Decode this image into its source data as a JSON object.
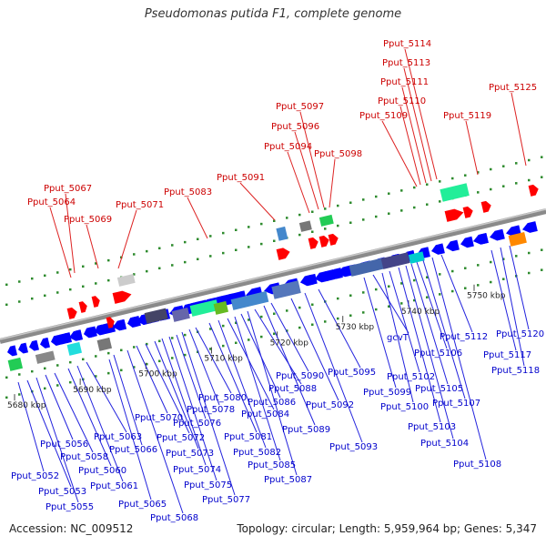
{
  "title": "Pseudomonas putida F1, complete genome",
  "footer": {
    "accession": "Accession: NC_009512",
    "summary": "Topology: circular; Length: 5,959,964 bp; Genes: 5,347"
  },
  "colors": {
    "label_red": "#cc0000",
    "label_blue": "#0000cc",
    "forward_gene": "#ff0000",
    "reverse_gene": "#0000ff",
    "backbone": "#888888"
  },
  "scale_labels": [
    {
      "text": "5680 kbp",
      "kbp": 5680
    },
    {
      "text": "5690 kbp",
      "kbp": 5690
    },
    {
      "text": "5700 kbp",
      "kbp": 5700
    },
    {
      "text": "5710 kbp",
      "kbp": 5710
    },
    {
      "text": "5720 kbp",
      "kbp": 5720
    },
    {
      "text": "5730 kbp",
      "kbp": 5730
    },
    {
      "text": "5740 kbp",
      "kbp": 5740
    },
    {
      "text": "5750 kbp",
      "kbp": 5750
    }
  ],
  "top_labels": [
    {
      "text": "Pput_5067"
    },
    {
      "text": "Pput_5064"
    },
    {
      "text": "Pput_5069"
    },
    {
      "text": "Pput_5071"
    },
    {
      "text": "Pput_5083"
    },
    {
      "text": "Pput_5091"
    },
    {
      "text": "Pput_5094"
    },
    {
      "text": "Pput_5096"
    },
    {
      "text": "Pput_5097"
    },
    {
      "text": "Pput_5098"
    },
    {
      "text": "Pput_5109"
    },
    {
      "text": "Pput_5110"
    },
    {
      "text": "Pput_5111"
    },
    {
      "text": "Pput_5113"
    },
    {
      "text": "Pput_5114"
    },
    {
      "text": "Pput_5119"
    },
    {
      "text": "Pput_5125"
    }
  ],
  "bottom_labels": [
    {
      "text": "Pput_5052"
    },
    {
      "text": "Pput_5053"
    },
    {
      "text": "Pput_5055"
    },
    {
      "text": "Pput_5056"
    },
    {
      "text": "Pput_5058"
    },
    {
      "text": "Pput_5060"
    },
    {
      "text": "Pput_5061"
    },
    {
      "text": "Pput_5063"
    },
    {
      "text": "Pput_5065"
    },
    {
      "text": "Pput_5066"
    },
    {
      "text": "Pput_5068"
    },
    {
      "text": "Pput_5070"
    },
    {
      "text": "Pput_5072"
    },
    {
      "text": "Pput_5073"
    },
    {
      "text": "Pput_5074"
    },
    {
      "text": "Pput_5075"
    },
    {
      "text": "Pput_5076"
    },
    {
      "text": "Pput_5077"
    },
    {
      "text": "Pput_5078"
    },
    {
      "text": "Pput_5080"
    },
    {
      "text": "Pput_5081"
    },
    {
      "text": "Pput_5082"
    },
    {
      "text": "Pput_5084"
    },
    {
      "text": "Pput_5085"
    },
    {
      "text": "Pput_5086"
    },
    {
      "text": "Pput_5087"
    },
    {
      "text": "Pput_5088"
    },
    {
      "text": "Pput_5089"
    },
    {
      "text": "Pput_5090"
    },
    {
      "text": "Pput_5092"
    },
    {
      "text": "Pput_5093"
    },
    {
      "text": "Pput_5095"
    },
    {
      "text": "Pput_5099"
    },
    {
      "text": "gcvT"
    },
    {
      "text": "Pput_5100"
    },
    {
      "text": "Pput_5102"
    },
    {
      "text": "Pput_5103"
    },
    {
      "text": "Pput_5104"
    },
    {
      "text": "Pput_5105"
    },
    {
      "text": "Pput_5106"
    },
    {
      "text": "Pput_5107"
    },
    {
      "text": "Pput_5108"
    },
    {
      "text": "Pput_5112"
    },
    {
      "text": "Pput_5117"
    },
    {
      "text": "Pput_5118"
    },
    {
      "text": "Pput_5120"
    }
  ]
}
